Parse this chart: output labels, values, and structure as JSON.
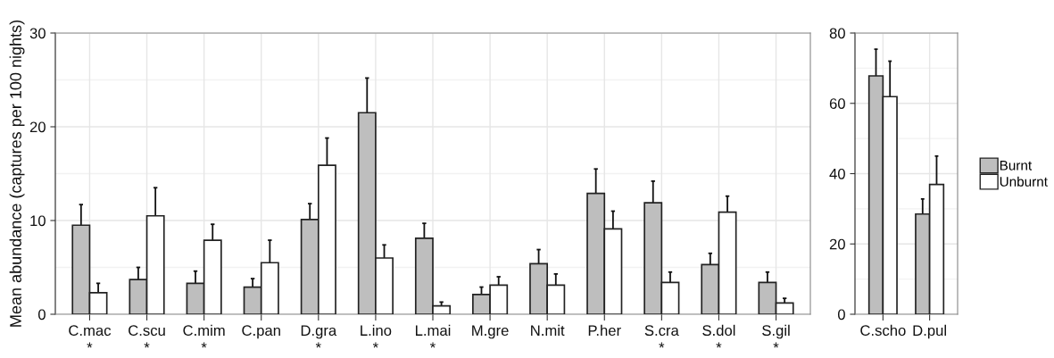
{
  "chart_data": [
    {
      "type": "bar",
      "ylabel": "Mean abundance (captures per 100 nights)",
      "categories": [
        "C.mac\n*",
        "C.scu\n*",
        "C.mim\n*",
        "C.pan",
        "D.gra\n*",
        "L.ino\n*",
        "L.mai\n*",
        "M.gre",
        "N.mit",
        "P.her",
        "S.cra\n*",
        "S.dol\n*",
        "S.gil\n*"
      ],
      "ylim": [
        0,
        30
      ],
      "yticks": [
        0,
        10,
        20,
        30
      ],
      "grid": true,
      "legend": false,
      "series": [
        {
          "color": "#bebebe",
          "values": [
            9.5,
            3.7,
            3.3,
            2.9,
            10.1,
            21.5,
            8.1,
            2.1,
            5.4,
            12.9,
            11.9,
            5.3,
            3.4
          ],
          "errors": [
            [
              9.5,
              11.7
            ],
            [
              3.7,
              5.0
            ],
            [
              3.3,
              4.6
            ],
            [
              2.9,
              3.8
            ],
            [
              10.1,
              11.8
            ],
            [
              21.5,
              25.2
            ],
            [
              8.1,
              9.7
            ],
            [
              2.1,
              2.9
            ],
            [
              5.4,
              6.9
            ],
            [
              12.9,
              15.5
            ],
            [
              11.9,
              14.2
            ],
            [
              5.3,
              6.5
            ],
            [
              3.4,
              4.5
            ]
          ]
        },
        {
          "color": "#ffffff",
          "values": [
            2.3,
            10.5,
            7.9,
            5.5,
            15.9,
            6.0,
            0.9,
            3.1,
            3.1,
            9.1,
            3.4,
            10.9,
            1.2
          ],
          "errors": [
            [
              2.3,
              3.3
            ],
            [
              10.5,
              13.5
            ],
            [
              7.9,
              9.6
            ],
            [
              5.5,
              7.9
            ],
            [
              15.9,
              18.8
            ],
            [
              6.0,
              7.4
            ],
            [
              0.9,
              1.3
            ],
            [
              3.1,
              4.0
            ],
            [
              3.1,
              4.3
            ],
            [
              9.1,
              11.0
            ],
            [
              3.4,
              4.5
            ],
            [
              10.9,
              12.6
            ],
            [
              1.2,
              1.7
            ]
          ]
        }
      ]
    },
    {
      "type": "bar",
      "categories": [
        "C.scho",
        "D.pul"
      ],
      "ylim": [
        0,
        80
      ],
      "yticks": [
        0,
        20,
        40,
        60,
        80
      ],
      "grid": true,
      "legend": "right",
      "series": [
        {
          "name": "Burnt",
          "color": "#bebebe",
          "values": [
            67.8,
            28.5
          ],
          "errors": [
            [
              67.8,
              75.4
            ],
            [
              28.5,
              32.8
            ]
          ]
        },
        {
          "name": "Unburnt",
          "color": "#ffffff",
          "values": [
            61.9,
            36.9
          ],
          "errors": [
            [
              61.9,
              72.0
            ],
            [
              36.9,
              45.0
            ]
          ]
        }
      ]
    }
  ]
}
